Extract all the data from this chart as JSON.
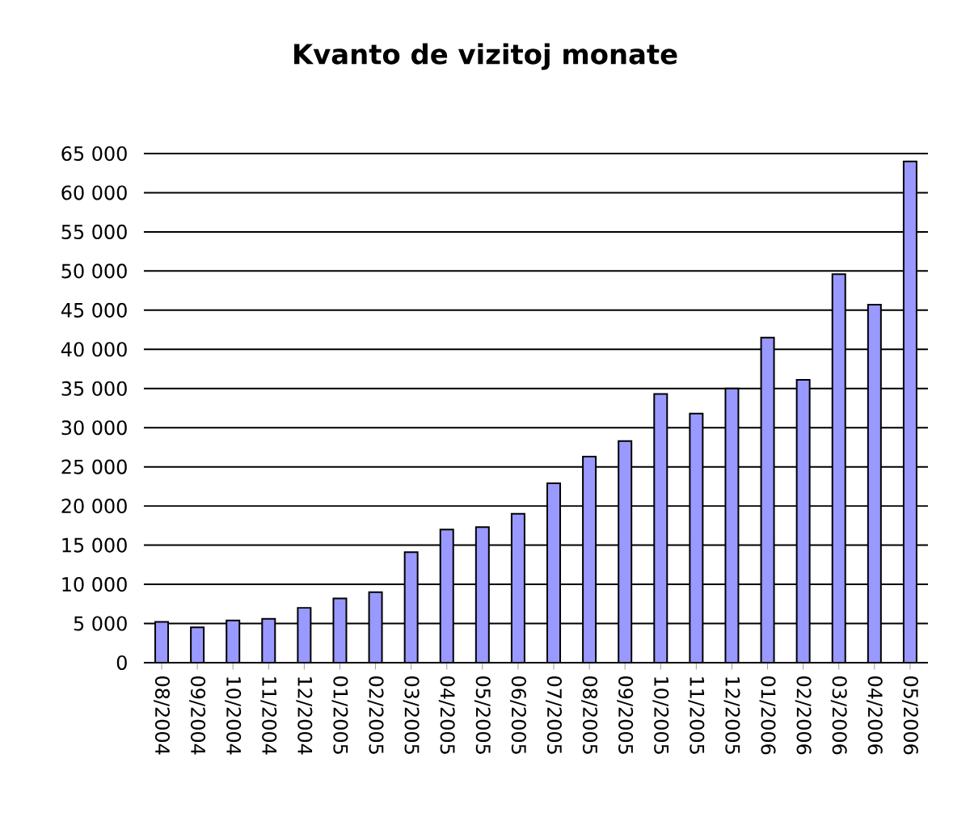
{
  "chart_data": {
    "type": "bar",
    "title": "Kvanto de vizitoj monate",
    "categories": [
      "08/2004",
      "09/2004",
      "10/2004",
      "11/2004",
      "12/2004",
      "01/2005",
      "02/2005",
      "03/2005",
      "04/2005",
      "05/2005",
      "06/2005",
      "07/2005",
      "08/2005",
      "09/2005",
      "10/2005",
      "11/2005",
      "12/2005",
      "01/2006",
      "02/2006",
      "03/2006",
      "04/2006",
      "05/2006"
    ],
    "values": [
      5200,
      4500,
      5400,
      5600,
      7000,
      8200,
      9000,
      14100,
      17000,
      17300,
      19000,
      22900,
      26300,
      28300,
      34300,
      31800,
      35000,
      41500,
      36100,
      49600,
      45700,
      64000
    ],
    "color": "#9999ff",
    "ylim": [
      0,
      65000
    ],
    "yticks": [
      {
        "value": 0,
        "label": "0"
      },
      {
        "value": 5000,
        "label": "5 000"
      },
      {
        "value": 10000,
        "label": "10 000"
      },
      {
        "value": 15000,
        "label": "15 000"
      },
      {
        "value": 20000,
        "label": "20 000"
      },
      {
        "value": 25000,
        "label": "25 000"
      },
      {
        "value": 30000,
        "label": "30 000"
      },
      {
        "value": 35000,
        "label": "35 000"
      },
      {
        "value": 40000,
        "label": "40 000"
      },
      {
        "value": 45000,
        "label": "45 000"
      },
      {
        "value": 50000,
        "label": "50 000"
      },
      {
        "value": 55000,
        "label": "55 000"
      },
      {
        "value": 60000,
        "label": "60 000"
      },
      {
        "value": 65000,
        "label": "65 000"
      }
    ],
    "grid": "y"
  }
}
